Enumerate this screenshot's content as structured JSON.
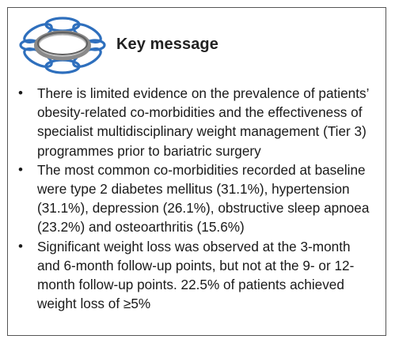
{
  "box": {
    "title": "Key message",
    "logo_icon": "flower-ring-icon",
    "accent_colors": [
      "#2e6fbd",
      "#7f7f7f"
    ],
    "bullets": [
      {
        "text": "There is limited evidence on the prevalence of patients’ obesity-related co-morbidities and the effectiveness of specialist multidisciplinary weight management (Tier 3) programmes prior to bariatric surgery"
      },
      {
        "text": "The most common co-morbidities recorded at baseline were type 2 diabetes mellitus (31.1%), hypertension (31.1%), depression (26.1%), obstructive sleep apnoea (23.2%) and osteoarthritis (15.6%)"
      },
      {
        "text": "Significant weight loss was observed at the 3-month and 6-month follow-up points, but not at the 9- or 12-month follow-up points. 22.5% of patients achieved weight loss of ≥5%"
      }
    ]
  }
}
